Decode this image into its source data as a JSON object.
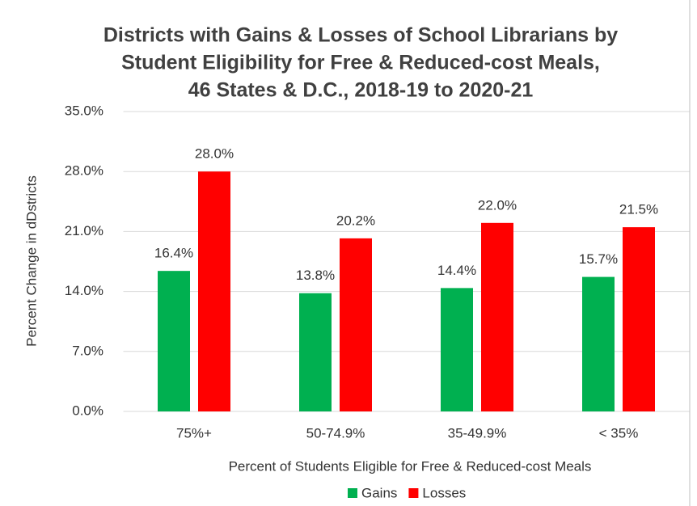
{
  "chart_data": {
    "type": "bar",
    "title": [
      "Districts with Gains & Losses of School Librarians by",
      "Student Eligibility for Free & Reduced-cost Meals,",
      "46 States & D.C., 2018-19 to 2020-21"
    ],
    "x_label": "Percent of Students Eligible for Free & Reduced-cost Meals",
    "y_label": "Percent Change in dDstricts",
    "categories": [
      "75%+",
      "50-74.9%",
      "35-49.9%",
      "< 35%"
    ],
    "series": [
      {
        "name": "Gains",
        "color": "#00b050",
        "values": [
          16.4,
          13.8,
          14.4,
          15.7
        ],
        "value_labels": [
          "16.4%",
          "13.8%",
          "14.4%",
          "15.7%"
        ]
      },
      {
        "name": "Losses",
        "color": "#ff0000",
        "values": [
          28.0,
          20.2,
          22.0,
          21.5
        ],
        "value_labels": [
          "28.0%",
          "20.2%",
          "22.0%",
          "21.5%"
        ]
      }
    ],
    "ylim": [
      0,
      35
    ],
    "yticks": [
      {
        "value": 0,
        "label": "0.0%"
      },
      {
        "value": 7,
        "label": "7.0%"
      },
      {
        "value": 14,
        "label": "14.0%"
      },
      {
        "value": 21,
        "label": "21.0%"
      },
      {
        "value": 28,
        "label": "28.0%"
      },
      {
        "value": 35,
        "label": "35.0%"
      }
    ],
    "grid": true,
    "legend": "bottom"
  }
}
